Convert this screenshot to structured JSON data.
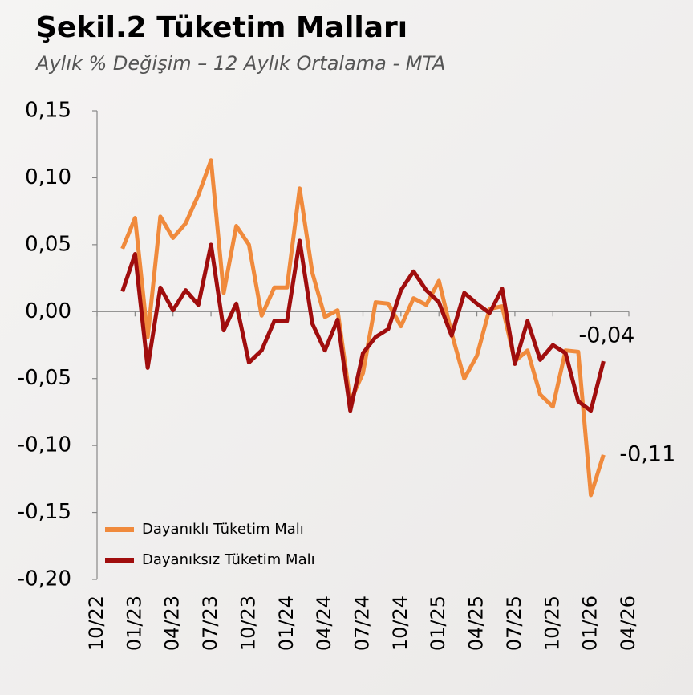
{
  "chart_data": {
    "type": "line",
    "title": "Şekil.2 Tüketim Malları",
    "subtitle": "Aylık % Değişim – 12 Aylık Ortalama - MTA",
    "categories": [
      "10/22",
      null,
      null,
      "01/23",
      null,
      null,
      "04/23",
      null,
      null,
      "07/23",
      null,
      null,
      "10/23",
      null,
      null,
      "01/24",
      null,
      null,
      "04/24",
      null,
      null,
      "07/24",
      null,
      null,
      "10/24",
      null,
      null,
      "01/25",
      null,
      null,
      "04/25",
      null,
      null,
      "07/25",
      null,
      null,
      "10/25",
      null,
      null,
      "01/26",
      null,
      null,
      "04/26"
    ],
    "series": [
      {
        "name": "Dayanıklı Tüketim Malı",
        "color": "#f08a3c",
        "values": [
          null,
          null,
          0.047,
          0.07,
          -0.019,
          0.071,
          0.055,
          0.066,
          0.087,
          0.113,
          0.014,
          0.064,
          0.05,
          -0.003,
          0.018,
          0.018,
          0.092,
          0.029,
          -0.004,
          0.001,
          -0.067,
          -0.046,
          0.007,
          0.006,
          -0.011,
          0.01,
          0.005,
          0.023,
          -0.016,
          -0.05,
          -0.033,
          0.002,
          0.004,
          -0.037,
          -0.029,
          -0.062,
          -0.071,
          -0.029,
          -0.03,
          -0.137,
          -0.107,
          null,
          null
        ],
        "value_labels": [
          null,
          null,
          null,
          null,
          null,
          null,
          null,
          null,
          null,
          null,
          null,
          null,
          null,
          null,
          null,
          null,
          null,
          null,
          null,
          null,
          null,
          null,
          null,
          null,
          null,
          null,
          null,
          null,
          null,
          null,
          null,
          null,
          null,
          null,
          null,
          null,
          null,
          null,
          null,
          null,
          "-0,11",
          null,
          null
        ]
      },
      {
        "name": "Dayanıksız Tüketim Malı",
        "color": "#a00d0d",
        "values": [
          null,
          null,
          0.015,
          0.043,
          -0.042,
          0.018,
          0.001,
          0.016,
          0.005,
          0.05,
          -0.014,
          0.006,
          -0.038,
          -0.029,
          -0.007,
          -0.007,
          0.053,
          -0.009,
          -0.029,
          -0.006,
          -0.074,
          -0.031,
          -0.019,
          -0.013,
          0.016,
          0.03,
          0.016,
          0.007,
          -0.018,
          0.014,
          0.006,
          -0.001,
          0.017,
          -0.039,
          -0.007,
          -0.036,
          -0.025,
          -0.031,
          -0.067,
          -0.074,
          -0.037,
          null,
          null
        ],
        "value_labels": [
          null,
          null,
          null,
          null,
          null,
          null,
          null,
          null,
          null,
          null,
          null,
          null,
          null,
          null,
          null,
          null,
          null,
          null,
          null,
          null,
          null,
          null,
          null,
          null,
          null,
          null,
          null,
          null,
          null,
          null,
          null,
          null,
          null,
          null,
          null,
          null,
          null,
          null,
          null,
          null,
          "-0,04",
          null,
          null
        ]
      }
    ],
    "ylim": [
      -0.2,
      0.15
    ],
    "yticks": [
      {
        "value": -0.2,
        "label": "-0,20"
      },
      {
        "value": -0.15,
        "label": "-0,15"
      },
      {
        "value": -0.1,
        "label": "-0,10"
      },
      {
        "value": -0.05,
        "label": "-0,05"
      },
      {
        "value": 0,
        "label": "0,00"
      },
      {
        "value": 0.05,
        "label": "0,05"
      },
      {
        "value": 0.1,
        "label": "0,10"
      },
      {
        "value": 0.15,
        "label": "0,15"
      }
    ],
    "legend": "lower left"
  }
}
